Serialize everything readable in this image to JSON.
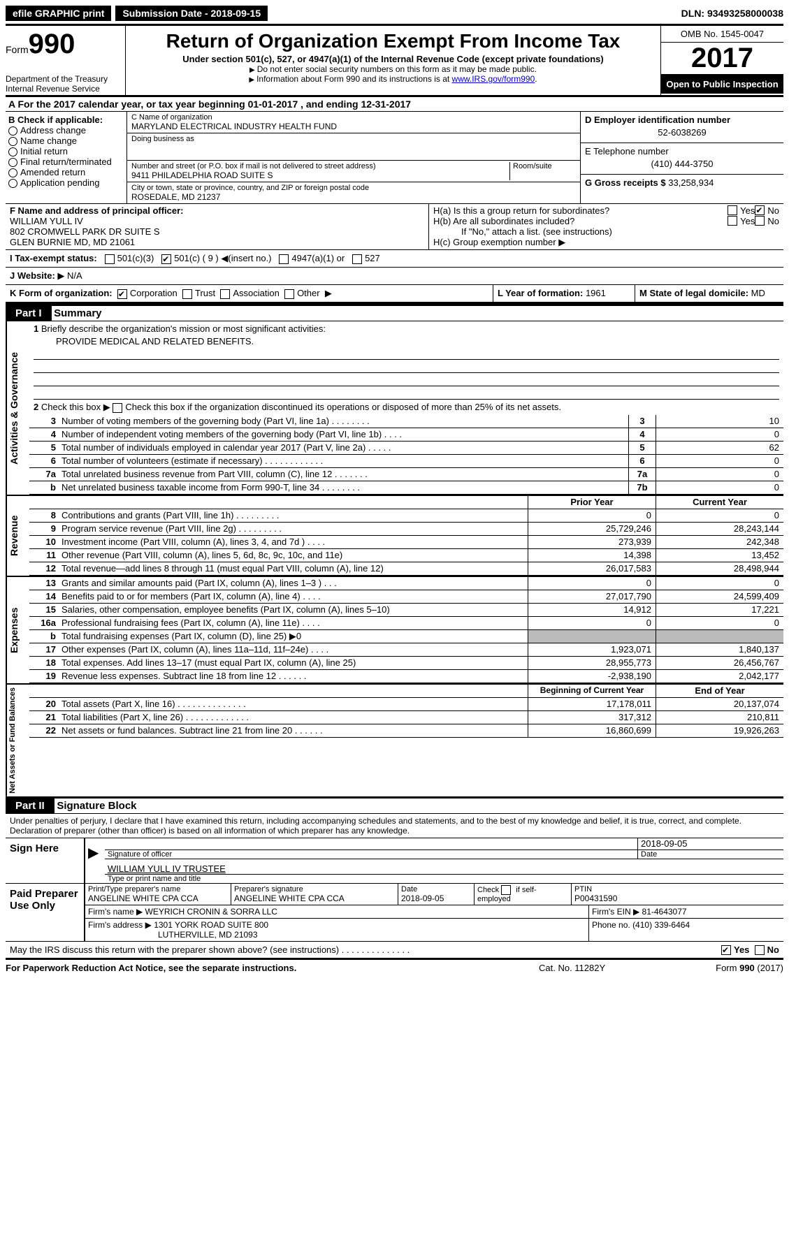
{
  "topbar": {
    "efile": "efile GRAPHIC print",
    "sub_label": "Submission Date - ",
    "sub_date": "2018-09-15",
    "dln_label": "DLN: ",
    "dln": "93493258000038"
  },
  "header": {
    "form_label": "Form",
    "form_num": "990",
    "dept1": "Department of the Treasury",
    "dept2": "Internal Revenue Service",
    "title": "Return of Organization Exempt From Income Tax",
    "subtitle": "Under section 501(c), 527, or 4947(a)(1) of the Internal Revenue Code (except private foundations)",
    "note1": "Do not enter social security numbers on this form as it may be made public.",
    "note2": "Information about Form 990 and its instructions is at ",
    "link": "www.IRS.gov/form990",
    "omb": "OMB No. 1545-0047",
    "year": "2017",
    "open": "Open to Public Inspection"
  },
  "sectionA": "A  For the 2017 calendar year, or tax year beginning 01-01-2017   , and ending 12-31-2017",
  "boxB": {
    "title": "B Check if applicable:",
    "opts": [
      "Address change",
      "Name change",
      "Initial return",
      "Final return/terminated",
      "Amended return",
      "Application pending"
    ]
  },
  "boxC": {
    "name_label": "C Name of organization",
    "name": "MARYLAND ELECTRICAL INDUSTRY HEALTH FUND",
    "dba_label": "Doing business as",
    "addr_label": "Number and street (or P.O. box if mail is not delivered to street address)",
    "room_label": "Room/suite",
    "addr": "9411 PHILADELPHIA ROAD SUITE S",
    "city_label": "City or town, state or province, country, and ZIP or foreign postal code",
    "city": "ROSEDALE, MD  21237"
  },
  "boxD": {
    "label": "D Employer identification number",
    "val": "52-6038269"
  },
  "boxE": {
    "label": "E Telephone number",
    "val": "(410) 444-3750"
  },
  "boxG": {
    "label": "G Gross receipts $ ",
    "val": "33,258,934"
  },
  "boxF": {
    "label": "F  Name and address of principal officer:",
    "name": "WILLIAM YULL IV",
    "addr1": "802 CROMWELL PARK DR SUITE S",
    "addr2": "GLEN BURNIE MD, MD  21061"
  },
  "boxH": {
    "a": "H(a)  Is this a group return for subordinates?",
    "b": "H(b)  Are all subordinates included?",
    "note": "If \"No,\" attach a list. (see instructions)",
    "c": "H(c)  Group exemption number"
  },
  "lineI": {
    "label": "I  Tax-exempt status:",
    "o1": "501(c)(3)",
    "o2": "501(c) ( 9 )",
    "o2b": "(insert no.)",
    "o3": "4947(a)(1) or",
    "o4": "527"
  },
  "lineJ": {
    "label": "J  Website:",
    "val": "N/A"
  },
  "lineK": {
    "label": "K Form of organization:",
    "opts": [
      "Corporation",
      "Trust",
      "Association",
      "Other"
    ]
  },
  "lineL": {
    "label": "L Year of formation: ",
    "val": "1961"
  },
  "lineM": {
    "label": "M State of legal domicile: ",
    "val": "MD"
  },
  "part1": {
    "bar": "Part I",
    "title": "Summary"
  },
  "gov": {
    "side": "Activities & Governance",
    "l1": "Briefly describe the organization's mission or most significant activities:",
    "mission": "PROVIDE MEDICAL AND RELATED BENEFITS.",
    "l2": "Check this box       if the organization discontinued its operations or disposed of more than 25% of its net assets.",
    "rows": [
      {
        "n": "3",
        "t": "Number of voting members of the governing body (Part VI, line 1a)   .   .   .   .   .   .   .   .",
        "k": "3",
        "v": "10"
      },
      {
        "n": "4",
        "t": "Number of independent voting members of the governing body (Part VI, line 1b)    .   .   .   .",
        "k": "4",
        "v": "0"
      },
      {
        "n": "5",
        "t": "Total number of individuals employed in calendar year 2017 (Part V, line 2a)    .   .   .   .   .",
        "k": "5",
        "v": "62"
      },
      {
        "n": "6",
        "t": "Total number of volunteers (estimate if necessary)   .   .   .   .   .   .   .   .   .   .   .   .",
        "k": "6",
        "v": "0"
      },
      {
        "n": "7a",
        "t": "Total unrelated business revenue from Part VIII, column (C), line 12   .   .   .   .   .   .   .",
        "k": "7a",
        "v": "0"
      },
      {
        "n": "b",
        "t": "Net unrelated business taxable income from Form 990-T, line 34   .   .   .   .   .   .   .   .",
        "k": "7b",
        "v": "0"
      }
    ]
  },
  "rev": {
    "side": "Revenue",
    "hdr_prior": "Prior Year",
    "hdr_curr": "Current Year",
    "rows": [
      {
        "n": "8",
        "t": "Contributions and grants (Part VIII, line 1h)   .   .   .   .   .   .   .   .   .",
        "p": "0",
        "c": "0"
      },
      {
        "n": "9",
        "t": "Program service revenue (Part VIII, line 2g)   .   .   .   .   .   .   .   .   .",
        "p": "25,729,246",
        "c": "28,243,144"
      },
      {
        "n": "10",
        "t": "Investment income (Part VIII, column (A), lines 3, 4, and 7d )   .   .   .   .",
        "p": "273,939",
        "c": "242,348"
      },
      {
        "n": "11",
        "t": "Other revenue (Part VIII, column (A), lines 5, 6d, 8c, 9c, 10c, and 11e)",
        "p": "14,398",
        "c": "13,452"
      },
      {
        "n": "12",
        "t": "Total revenue—add lines 8 through 11 (must equal Part VIII, column (A), line 12)",
        "p": "26,017,583",
        "c": "28,498,944"
      }
    ]
  },
  "exp": {
    "side": "Expenses",
    "rows": [
      {
        "n": "13",
        "t": "Grants and similar amounts paid (Part IX, column (A), lines 1–3 )   .   .   .",
        "p": "0",
        "c": "0"
      },
      {
        "n": "14",
        "t": "Benefits paid to or for members (Part IX, column (A), line 4)   .   .   .   .",
        "p": "27,017,790",
        "c": "24,599,409"
      },
      {
        "n": "15",
        "t": "Salaries, other compensation, employee benefits (Part IX, column (A), lines 5–10)",
        "p": "14,912",
        "c": "17,221"
      },
      {
        "n": "16a",
        "t": "Professional fundraising fees (Part IX, column (A), line 11e)   .   .   .   .",
        "p": "0",
        "c": "0"
      },
      {
        "n": "b",
        "t": "Total fundraising expenses (Part IX, column (D), line 25) ▶0",
        "p": "",
        "c": "",
        "shaded": true
      },
      {
        "n": "17",
        "t": "Other expenses (Part IX, column (A), lines 11a–11d, 11f–24e)   .   .   .   .",
        "p": "1,923,071",
        "c": "1,840,137"
      },
      {
        "n": "18",
        "t": "Total expenses. Add lines 13–17 (must equal Part IX, column (A), line 25)",
        "p": "28,955,773",
        "c": "26,456,767"
      },
      {
        "n": "19",
        "t": "Revenue less expenses. Subtract line 18 from line 12   .   .   .   .   .   .",
        "p": "-2,938,190",
        "c": "2,042,177"
      }
    ]
  },
  "net": {
    "side": "Net Assets or Fund Balances",
    "hdr_beg": "Beginning of Current Year",
    "hdr_end": "End of Year",
    "rows": [
      {
        "n": "20",
        "t": "Total assets (Part X, line 16)   .   .   .   .   .   .   .   .   .   .   .   .   .   .",
        "p": "17,178,011",
        "c": "20,137,074"
      },
      {
        "n": "21",
        "t": "Total liabilities (Part X, line 26)   .   .   .   .   .   .   .   .   .   .   .   .   .",
        "p": "317,312",
        "c": "210,811"
      },
      {
        "n": "22",
        "t": "Net assets or fund balances. Subtract line 21 from line 20 .   .   .   .   .   .",
        "p": "16,860,699",
        "c": "19,926,263"
      }
    ]
  },
  "part2": {
    "bar": "Part II",
    "title": "Signature Block"
  },
  "sig": {
    "penalty": "Under penalties of perjury, I declare that I have examined this return, including accompanying schedules and statements, and to the best of my knowledge and belief, it is true, correct, and complete. Declaration of preparer (other than officer) is based on all information of which preparer has any knowledge.",
    "sign_here": "Sign Here",
    "sig_of": "Signature of officer",
    "date": "2018-09-05",
    "date_label": "Date",
    "name": "WILLIAM YULL IV TRUSTEE",
    "name_label": "Type or print name and title"
  },
  "prep": {
    "label": "Paid Preparer Use Only",
    "name_label": "Print/Type preparer's name",
    "name": "ANGELINE WHITE CPA CCA",
    "sig_label": "Preparer's signature",
    "sig": "ANGELINE WHITE CPA CCA",
    "date_label": "Date",
    "date": "2018-09-05",
    "check_label": "Check      if self-employed",
    "ptin_label": "PTIN",
    "ptin": "P00431590",
    "firm_name_label": "Firm's name     ▶ ",
    "firm_name": "WEYRICH CRONIN & SORRA LLC",
    "ein_label": "Firm's EIN ▶ ",
    "ein": "81-4643077",
    "firm_addr_label": "Firm's address ▶ ",
    "firm_addr": "1301 YORK ROAD SUITE 800",
    "firm_city": "LUTHERVILLE, MD  21093",
    "phone_label": "Phone no. ",
    "phone": "(410) 339-6464"
  },
  "discuss": "May the IRS discuss this return with the preparer shown above? (see instructions)   .   .   .   .   .   .   .   .   .   .   .   .   .   .",
  "footer": {
    "left": "For Paperwork Reduction Act Notice, see the separate instructions.",
    "mid": "Cat. No. 11282Y",
    "right": "Form 990 (2017)"
  },
  "yes": "Yes",
  "no": "No"
}
